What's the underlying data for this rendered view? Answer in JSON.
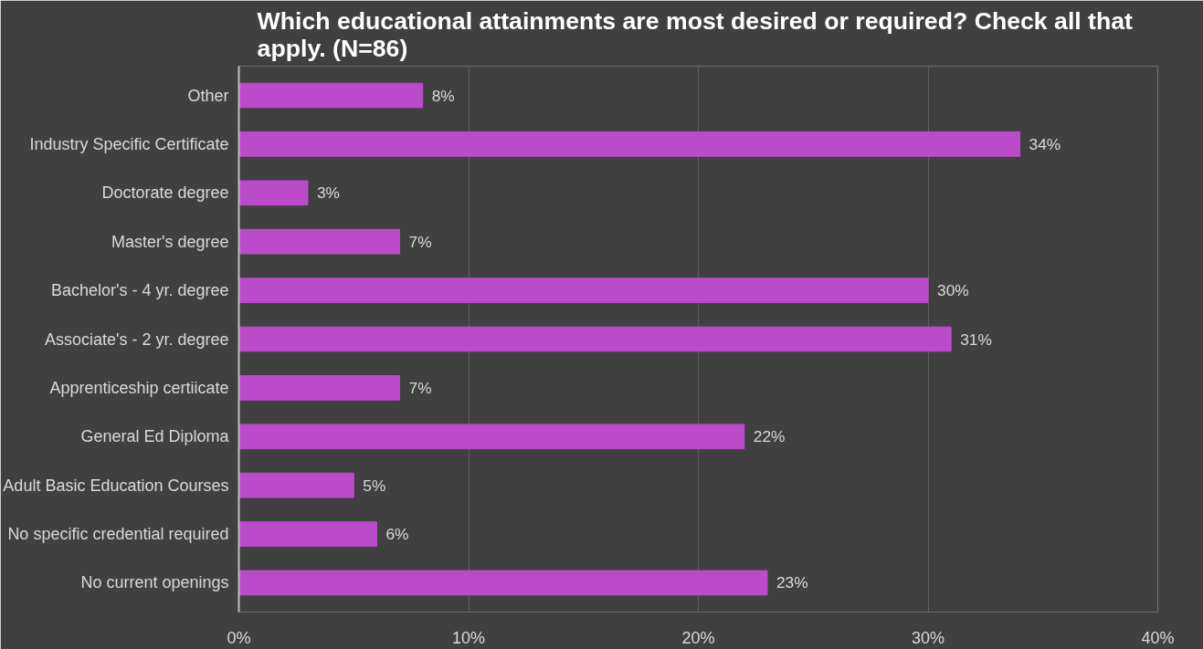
{
  "chart_data": {
    "type": "bar",
    "orientation": "horizontal",
    "title": "Which educational attainments are most desired or required?  Check all that apply. (N=86)",
    "categories": [
      "Other",
      "Industry Specific Certificate",
      "Doctorate degree",
      "Master's degree",
      "Bachelor's - 4 yr. degree",
      "Associate's - 2 yr. degree",
      "Apprenticeship certiicate",
      "General Ed Diploma",
      "Adult Basic Education Courses",
      "No specific credential required",
      "No current openings"
    ],
    "values": [
      8,
      34,
      3,
      7,
      30,
      31,
      7,
      22,
      5,
      6,
      23
    ],
    "value_labels": [
      "8%",
      "34%",
      "3%",
      "7%",
      "30%",
      "31%",
      "7%",
      "22%",
      "5%",
      "6%",
      "23%"
    ],
    "color": "#bc4bcc",
    "xlim": [
      0,
      40
    ],
    "xticks": [
      {
        "value": 0,
        "label": "0%"
      },
      {
        "value": 10,
        "label": "10%"
      },
      {
        "value": 20,
        "label": "20%"
      },
      {
        "value": 30,
        "label": "30%"
      },
      {
        "value": 40,
        "label": "40%"
      }
    ],
    "grid": "x"
  }
}
